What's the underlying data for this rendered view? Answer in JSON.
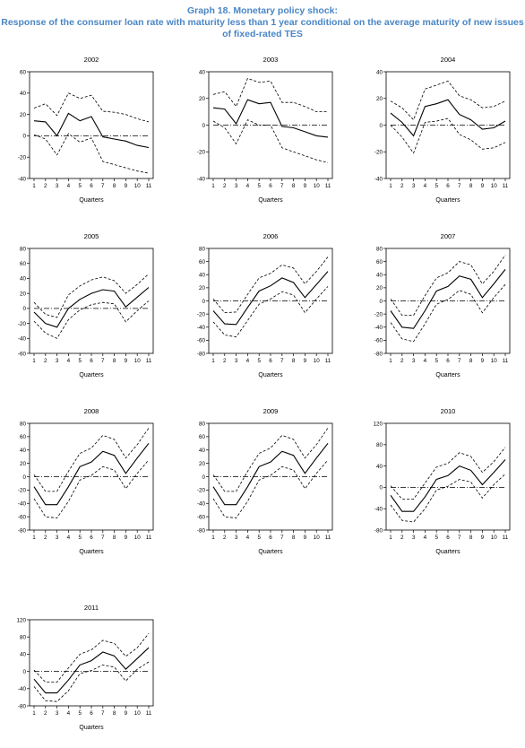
{
  "header": {
    "title": "Graph 18. Monetary policy shock:",
    "subtitle_line1": "Response of the consumer loan rate with maturity less than 1 year conditional on the average maturity of new issues",
    "subtitle_line2": "of fixed-rated TES"
  },
  "style": {
    "title_color": "#4a86c5",
    "line_color": "#000000"
  },
  "chart_data": [
    {
      "type": "line",
      "title": "2002",
      "xlabel": "Quarters",
      "x": [
        1,
        2,
        3,
        4,
        5,
        6,
        7,
        8,
        9,
        10,
        11
      ],
      "ylim": [
        -40,
        60
      ],
      "yticks": [
        -40,
        -20,
        0,
        20,
        40,
        60
      ],
      "series": [
        {
          "style": "solid",
          "values": [
            14,
            13,
            0,
            21,
            14,
            18,
            -1,
            -3,
            -5,
            -9,
            -11
          ]
        },
        {
          "style": "dashed",
          "values": [
            26,
            30,
            19,
            40,
            35,
            38,
            23,
            22,
            20,
            16,
            13
          ]
        },
        {
          "style": "dashed",
          "values": [
            1,
            -3,
            -18,
            2,
            -6,
            -2,
            -24,
            -27,
            -30,
            -33,
            -35
          ]
        },
        {
          "style": "dashdot",
          "values": [
            0,
            0,
            0,
            0,
            0,
            0,
            0,
            0,
            0,
            0,
            0
          ]
        }
      ]
    },
    {
      "type": "line",
      "title": "2003",
      "xlabel": "Quarters",
      "x": [
        1,
        2,
        3,
        4,
        5,
        6,
        7,
        8,
        9,
        10,
        11
      ],
      "ylim": [
        -40,
        40
      ],
      "yticks": [
        -40,
        -20,
        0,
        20,
        40
      ],
      "series": [
        {
          "style": "solid",
          "values": [
            13,
            12,
            1,
            19,
            16,
            17,
            -1,
            -2,
            -5,
            -8,
            -9
          ]
        },
        {
          "style": "dashed",
          "values": [
            23,
            25,
            14,
            35,
            32,
            33,
            17,
            17,
            14,
            10,
            10
          ]
        },
        {
          "style": "dashed",
          "values": [
            3,
            -2,
            -14,
            4,
            0,
            0,
            -17,
            -20,
            -23,
            -26,
            -28
          ]
        },
        {
          "style": "dashdot",
          "values": [
            0,
            0,
            0,
            0,
            0,
            0,
            0,
            0,
            0,
            0,
            0
          ]
        }
      ]
    },
    {
      "type": "line",
      "title": "2004",
      "xlabel": "Quarters",
      "x": [
        1,
        2,
        3,
        4,
        5,
        6,
        7,
        8,
        9,
        10,
        11
      ],
      "ylim": [
        -40,
        40
      ],
      "yticks": [
        -40,
        -20,
        0,
        20,
        40
      ],
      "series": [
        {
          "style": "solid",
          "values": [
            9,
            2,
            -8,
            14,
            16,
            19,
            8,
            4,
            -3,
            -2,
            3
          ]
        },
        {
          "style": "dashed",
          "values": [
            18,
            13,
            4,
            27,
            30,
            33,
            22,
            19,
            13,
            14,
            18
          ]
        },
        {
          "style": "dashed",
          "values": [
            0,
            -9,
            -21,
            2,
            3,
            5,
            -7,
            -11,
            -18,
            -17,
            -13
          ]
        },
        {
          "style": "dashdot",
          "values": [
            0,
            0,
            0,
            0,
            0,
            0,
            0,
            0,
            0,
            0,
            0
          ]
        }
      ]
    },
    {
      "type": "line",
      "title": "2005",
      "xlabel": "Quarters",
      "x": [
        1,
        2,
        3,
        4,
        5,
        6,
        7,
        8,
        9,
        10,
        11
      ],
      "ylim": [
        -60,
        80
      ],
      "yticks": [
        -60,
        -40,
        -20,
        0,
        20,
        40,
        60,
        80
      ],
      "series": [
        {
          "style": "solid",
          "values": [
            -5,
            -20,
            -25,
            0,
            12,
            20,
            25,
            23,
            2,
            15,
            28
          ]
        },
        {
          "style": "dashed",
          "values": [
            8,
            -8,
            -12,
            18,
            30,
            38,
            42,
            37,
            20,
            32,
            46
          ]
        },
        {
          "style": "dashed",
          "values": [
            -17,
            -33,
            -40,
            -15,
            -2,
            5,
            8,
            6,
            -18,
            -3,
            10
          ]
        },
        {
          "style": "dashdot",
          "values": [
            0,
            0,
            0,
            0,
            0,
            0,
            0,
            0,
            0,
            0,
            0
          ]
        }
      ]
    },
    {
      "type": "line",
      "title": "2006",
      "xlabel": "Quarters",
      "x": [
        1,
        2,
        3,
        4,
        5,
        6,
        7,
        8,
        9,
        10,
        11
      ],
      "ylim": [
        -80,
        80
      ],
      "yticks": [
        -80,
        -60,
        -40,
        -20,
        0,
        20,
        40,
        60,
        80
      ],
      "series": [
        {
          "style": "solid",
          "values": [
            -15,
            -35,
            -36,
            -10,
            15,
            23,
            35,
            28,
            5,
            25,
            45
          ]
        },
        {
          "style": "dashed",
          "values": [
            3,
            -18,
            -17,
            10,
            35,
            42,
            55,
            50,
            26,
            45,
            67
          ]
        },
        {
          "style": "dashed",
          "values": [
            -32,
            -52,
            -55,
            -30,
            -5,
            3,
            14,
            9,
            -18,
            3,
            22
          ]
        },
        {
          "style": "dashdot",
          "values": [
            0,
            0,
            0,
            0,
            0,
            0,
            0,
            0,
            0,
            0,
            0
          ]
        }
      ]
    },
    {
      "type": "line",
      "title": "2007",
      "xlabel": "Quarters",
      "x": [
        1,
        2,
        3,
        4,
        5,
        6,
        7,
        8,
        9,
        10,
        11
      ],
      "ylim": [
        -80,
        80
      ],
      "yticks": [
        -80,
        -60,
        -40,
        -20,
        0,
        20,
        40,
        60,
        80
      ],
      "series": [
        {
          "style": "solid",
          "values": [
            -15,
            -40,
            -42,
            -15,
            15,
            22,
            38,
            33,
            5,
            26,
            48
          ]
        },
        {
          "style": "dashed",
          "values": [
            3,
            -22,
            -22,
            8,
            35,
            43,
            60,
            55,
            26,
            45,
            70
          ]
        },
        {
          "style": "dashed",
          "values": [
            -33,
            -58,
            -62,
            -35,
            -5,
            2,
            16,
            10,
            -18,
            5,
            25
          ]
        },
        {
          "style": "dashdot",
          "values": [
            0,
            0,
            0,
            0,
            0,
            0,
            0,
            0,
            0,
            0,
            0
          ]
        }
      ]
    },
    {
      "type": "line",
      "title": "2008",
      "xlabel": "Quarters",
      "x": [
        1,
        2,
        3,
        4,
        5,
        6,
        7,
        8,
        9,
        10,
        11
      ],
      "ylim": [
        -80,
        80
      ],
      "yticks": [
        -80,
        -60,
        -40,
        -20,
        0,
        20,
        40,
        60,
        80
      ],
      "series": [
        {
          "style": "solid",
          "values": [
            -15,
            -42,
            -42,
            -15,
            15,
            22,
            38,
            32,
            5,
            28,
            50
          ]
        },
        {
          "style": "dashed",
          "values": [
            3,
            -22,
            -22,
            8,
            35,
            43,
            62,
            56,
            28,
            48,
            73
          ]
        },
        {
          "style": "dashed",
          "values": [
            -33,
            -60,
            -62,
            -37,
            -5,
            2,
            15,
            10,
            -18,
            5,
            25
          ]
        },
        {
          "style": "dashdot",
          "values": [
            0,
            0,
            0,
            0,
            0,
            0,
            0,
            0,
            0,
            0,
            0
          ]
        }
      ]
    },
    {
      "type": "line",
      "title": "2009",
      "xlabel": "Quarters",
      "x": [
        1,
        2,
        3,
        4,
        5,
        6,
        7,
        8,
        9,
        10,
        11
      ],
      "ylim": [
        -80,
        80
      ],
      "yticks": [
        -80,
        -60,
        -40,
        -20,
        0,
        20,
        40,
        60,
        80
      ],
      "series": [
        {
          "style": "solid",
          "values": [
            -15,
            -42,
            -42,
            -15,
            15,
            22,
            38,
            32,
            5,
            28,
            50
          ]
        },
        {
          "style": "dashed",
          "values": [
            3,
            -22,
            -22,
            8,
            35,
            43,
            62,
            56,
            28,
            48,
            73
          ]
        },
        {
          "style": "dashed",
          "values": [
            -33,
            -60,
            -62,
            -37,
            -5,
            2,
            15,
            10,
            -18,
            5,
            25
          ]
        },
        {
          "style": "dashdot",
          "values": [
            0,
            0,
            0,
            0,
            0,
            0,
            0,
            0,
            0,
            0,
            0
          ]
        }
      ]
    },
    {
      "type": "line",
      "title": "2010",
      "xlabel": "Quarters",
      "x": [
        1,
        2,
        3,
        4,
        5,
        6,
        7,
        8,
        9,
        10,
        11
      ],
      "ylim": [
        -80,
        120
      ],
      "yticks": [
        -80,
        -40,
        0,
        40,
        80,
        120
      ],
      "series": [
        {
          "style": "solid",
          "values": [
            -15,
            -45,
            -45,
            -18,
            15,
            22,
            40,
            32,
            5,
            28,
            52
          ]
        },
        {
          "style": "dashed",
          "values": [
            3,
            -22,
            -22,
            8,
            38,
            45,
            65,
            58,
            28,
            48,
            75
          ]
        },
        {
          "style": "dashed",
          "values": [
            -33,
            -62,
            -65,
            -40,
            -5,
            2,
            15,
            10,
            -20,
            5,
            25
          ]
        },
        {
          "style": "dashdot",
          "values": [
            0,
            0,
            0,
            0,
            0,
            0,
            0,
            0,
            0,
            0,
            0
          ]
        }
      ]
    },
    {
      "type": "line",
      "title": "2011",
      "xlabel": "Quarters",
      "x": [
        1,
        2,
        3,
        4,
        5,
        6,
        7,
        8,
        9,
        10,
        11
      ],
      "ylim": [
        -80,
        120
      ],
      "yticks": [
        -80,
        -40,
        0,
        40,
        80,
        120
      ],
      "series": [
        {
          "style": "solid",
          "values": [
            -18,
            -50,
            -50,
            -20,
            15,
            25,
            45,
            36,
            5,
            30,
            55
          ]
        },
        {
          "style": "dashed",
          "values": [
            3,
            -25,
            -25,
            8,
            40,
            50,
            72,
            65,
            35,
            55,
            88
          ]
        },
        {
          "style": "dashed",
          "values": [
            -35,
            -68,
            -70,
            -45,
            -5,
            2,
            15,
            10,
            -22,
            5,
            22
          ]
        },
        {
          "style": "dashdot",
          "values": [
            0,
            0,
            0,
            0,
            0,
            0,
            0,
            0,
            0,
            0,
            0
          ]
        }
      ]
    }
  ]
}
